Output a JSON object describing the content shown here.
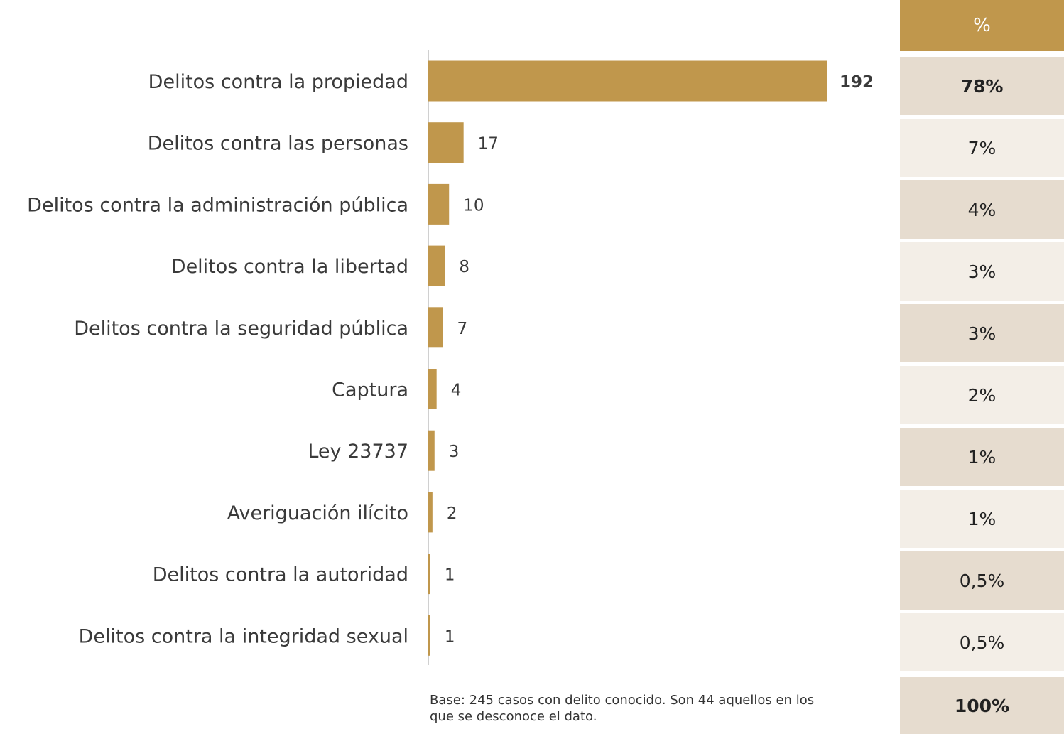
{
  "chart_data": {
    "type": "bar",
    "orientation": "horizontal",
    "categories": [
      "Delitos contra la propiedad",
      "Delitos contra las personas",
      "Delitos contra la administración pública",
      "Delitos contra la libertad",
      "Delitos contra la seguridad pública",
      "Captura",
      "Ley 23737",
      "Averiguación ilícito",
      "Delitos contra la autoridad",
      "Delitos contra la integridad sexual"
    ],
    "values": [
      192,
      17,
      10,
      8,
      7,
      4,
      3,
      2,
      1,
      1
    ],
    "value_labels": [
      "192",
      "17",
      "10",
      "8",
      "7",
      "4",
      "3",
      "2",
      "1",
      "1"
    ],
    "highlight_index": 0,
    "bar_color": "#c0974c",
    "axis_color": "#d0d0d0",
    "grid": false
  },
  "table": {
    "header": "%",
    "percentages": [
      "78%",
      "7%",
      "4%",
      "3%",
      "3%",
      "2%",
      "1%",
      "1%",
      "0,5%",
      "0,5%"
    ],
    "total": "100%",
    "header_color": "#c0974c",
    "row_color_odd": "#e6dccf",
    "row_color_even": "#f3eee7"
  },
  "footnote": "Base: 245 casos con delito conocido. Son 44 aquellos en los que se desconoce el dato."
}
